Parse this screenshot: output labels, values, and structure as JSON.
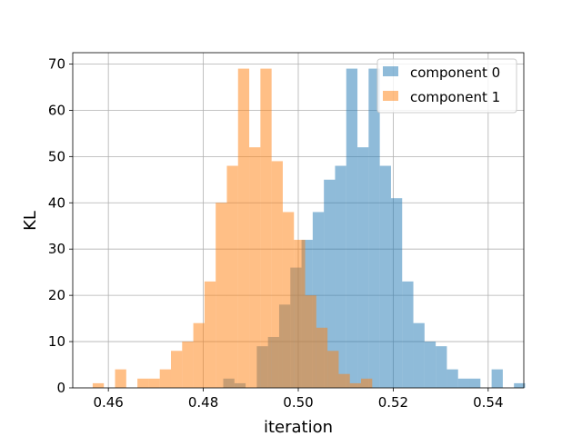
{
  "chart_data": {
    "type": "bar",
    "subtype": "overlapping-histogram",
    "xlabel": "iteration",
    "ylabel": "KL",
    "xlim": [
      0.4525,
      0.5475
    ],
    "ylim": [
      0,
      72.45
    ],
    "xticks": [
      0.46,
      0.48,
      0.5,
      0.52,
      0.54
    ],
    "xtick_labels": [
      "0.46",
      "0.48",
      "0.50",
      "0.52",
      "0.54"
    ],
    "yticks": [
      0,
      10,
      20,
      30,
      40,
      50,
      60,
      70
    ],
    "ytick_labels": [
      "0",
      "10",
      "20",
      "30",
      "40",
      "50",
      "60",
      "70"
    ],
    "grid": true,
    "legend_position": "top-right",
    "series": [
      {
        "name": "component 0",
        "color": "#1f77b4",
        "alpha": 0.5,
        "bin_start": 0.4842,
        "bin_width": 0.002355,
        "counts": [
          2,
          1,
          0,
          9,
          11,
          18,
          26,
          32,
          38,
          45,
          48,
          69,
          52,
          69,
          48,
          41,
          23,
          14,
          10,
          9,
          4,
          2,
          2,
          0,
          4,
          0,
          1
        ]
      },
      {
        "name": "component 1",
        "color": "#ff7f0e",
        "alpha": 0.5,
        "bin_start": 0.4567,
        "bin_width": 0.002355,
        "counts": [
          1,
          0,
          4,
          0,
          2,
          2,
          4,
          8,
          10,
          14,
          23,
          40,
          48,
          69,
          52,
          69,
          49,
          38,
          32,
          20,
          13,
          8,
          3,
          1,
          2
        ]
      }
    ]
  }
}
